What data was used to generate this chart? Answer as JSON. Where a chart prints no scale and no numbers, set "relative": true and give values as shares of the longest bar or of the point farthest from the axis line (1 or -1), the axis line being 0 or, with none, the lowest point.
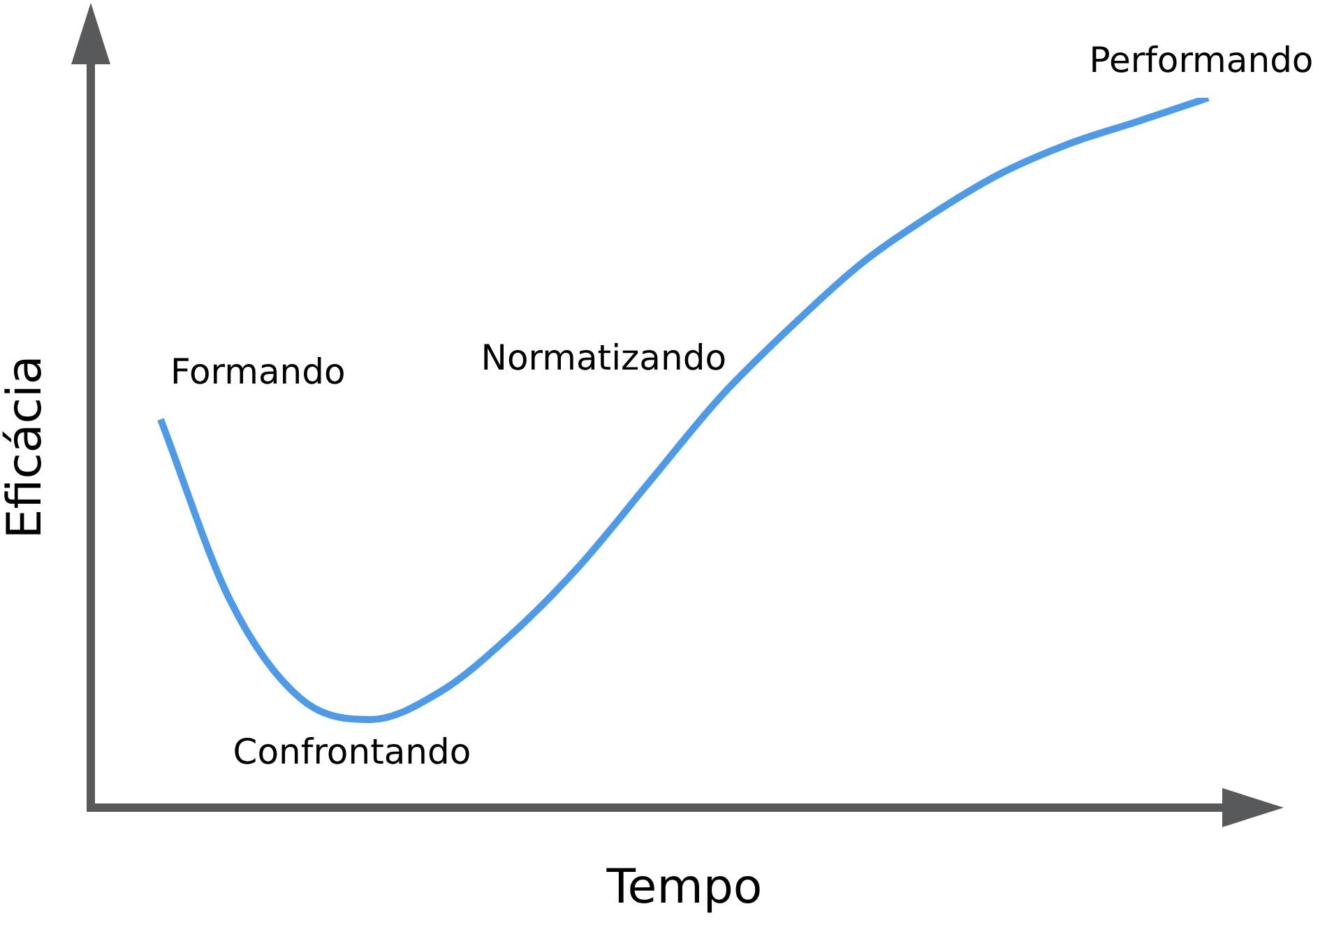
{
  "chart_data": {
    "type": "line",
    "relative": true,
    "xlabel": "Tempo",
    "ylabel": "Eficácia",
    "categories": [
      null,
      null,
      null,
      null,
      null,
      null,
      null,
      null,
      null,
      null,
      null,
      null,
      null,
      null,
      null,
      null
    ],
    "series": [
      {
        "color": "#4d9be8",
        "values": [
          0.547,
          0.291,
          0.154,
          0.124,
          0.163,
          0.242,
          0.341,
          0.459,
          0.577,
          0.675,
          0.764,
          0.833,
          0.892,
          0.935,
          0.967,
          1
        ]
      }
    ],
    "annotations": [
      "Formando",
      "Confrontando",
      "Normatizando",
      "Performando"
    ],
    "marker": "none"
  }
}
